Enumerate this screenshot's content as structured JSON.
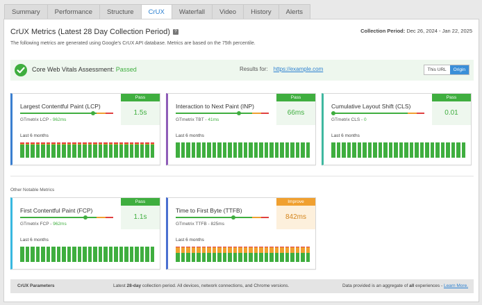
{
  "tabs": [
    "Summary",
    "Performance",
    "Structure",
    "CrUX",
    "Waterfall",
    "Video",
    "History",
    "Alerts"
  ],
  "active_tab": "CrUX",
  "page": {
    "title": "CrUX Metrics (Latest 28 Day Collection Period)",
    "help": "?",
    "description": "The following metrics are generated using Google's CrUX API database. Metrics are based on the 75th percentile.",
    "period_label": "Collection Period:",
    "period_value": "Dec 26, 2024 - Jan 22, 2025"
  },
  "assessment": {
    "label": "Core Web Vitals Assessment:",
    "status": "Passed",
    "results_label": "Results for:",
    "results_url": "https://example.com",
    "toggle": [
      "This URL",
      "Origin"
    ],
    "toggle_selected": "Origin"
  },
  "colors": {
    "pass": "#3fae3f",
    "improve": "#f0a030",
    "poor": "#e04040",
    "link": "#2a7fd0"
  },
  "cards": [
    {
      "title": "Largest Contentful Paint (LCP)",
      "sub_label": "GTmetrix LCP -",
      "sub_value": "962ms",
      "status": "Pass",
      "value": "1.5s",
      "last_label": "Last 6 months",
      "marker": 0.78,
      "accent": "#3a7fd0",
      "bars_orange": 0.07,
      "bars_red": 0.07
    },
    {
      "title": "Interaction to Next Paint (INP)",
      "sub_label": "GTmetrix TBT -",
      "sub_value": "41ms",
      "status": "Pass",
      "value": "66ms",
      "last_label": "Last 6 months",
      "marker": 0.68,
      "accent": "#8e5cb8",
      "bars_orange": 0,
      "bars_red": 0
    },
    {
      "title": "Cumulative Layout Shift (CLS)",
      "sub_label": "GTmetrix CLS -",
      "sub_value": "0",
      "status": "Pass",
      "value": "0.01",
      "last_label": "Last 6 months",
      "marker": 0.02,
      "accent": "#3fb8a0",
      "bars_orange": 0,
      "bars_red": 0
    },
    {
      "title": "First Contentful Paint (FCP)",
      "sub_label": "GTmetrix FCP -",
      "sub_value": "962ms",
      "status": "Pass",
      "value": "1.1s",
      "last_label": "Last 6 months",
      "marker": 0.7,
      "accent": "#38b8e0",
      "bars_orange": 0,
      "bars_red": 0
    },
    {
      "title": "Time to First Byte (TTFB)",
      "sub_label": "GTmetrix TTFB -",
      "sub_value": "825ms",
      "status": "Improve",
      "value": "842ms",
      "last_label": "Last 6 months",
      "marker": 0.62,
      "accent": "#4a6fd0",
      "bars_orange": 0.36,
      "bars_red": 0.05
    }
  ],
  "other_label": "Other Notable Metrics",
  "footer": {
    "left": "CrUX Parameters",
    "middle_pre": "Latest ",
    "middle_bold": "28-day",
    "middle_post": " collection period. All devices, network connections, and Chrome versions.",
    "right_pre": "Data provided is an aggregate of ",
    "right_bold": "all",
    "right_post": " experiences - ",
    "right_link": "Learn More."
  }
}
